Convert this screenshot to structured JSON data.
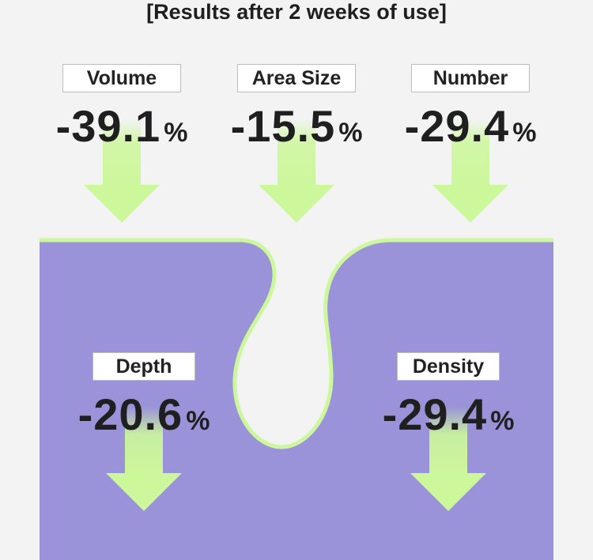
{
  "title": "[Results after 2 weeks of use]",
  "metrics": [
    {
      "label": "Volume",
      "value": "-39.1",
      "unit": "%"
    },
    {
      "label": "Area Size",
      "value": "-15.5",
      "unit": "%"
    },
    {
      "label": "Number",
      "value": "-29.4",
      "unit": "%"
    },
    {
      "label": "Depth",
      "value": "-20.6",
      "unit": "%"
    },
    {
      "label": "Density",
      "value": "-29.4",
      "unit": "%"
    }
  ],
  "colors": {
    "background": "#f3f3f3",
    "skin": "#9b93d9",
    "accent": "#ccf79b",
    "text": "#1f1f1f"
  }
}
